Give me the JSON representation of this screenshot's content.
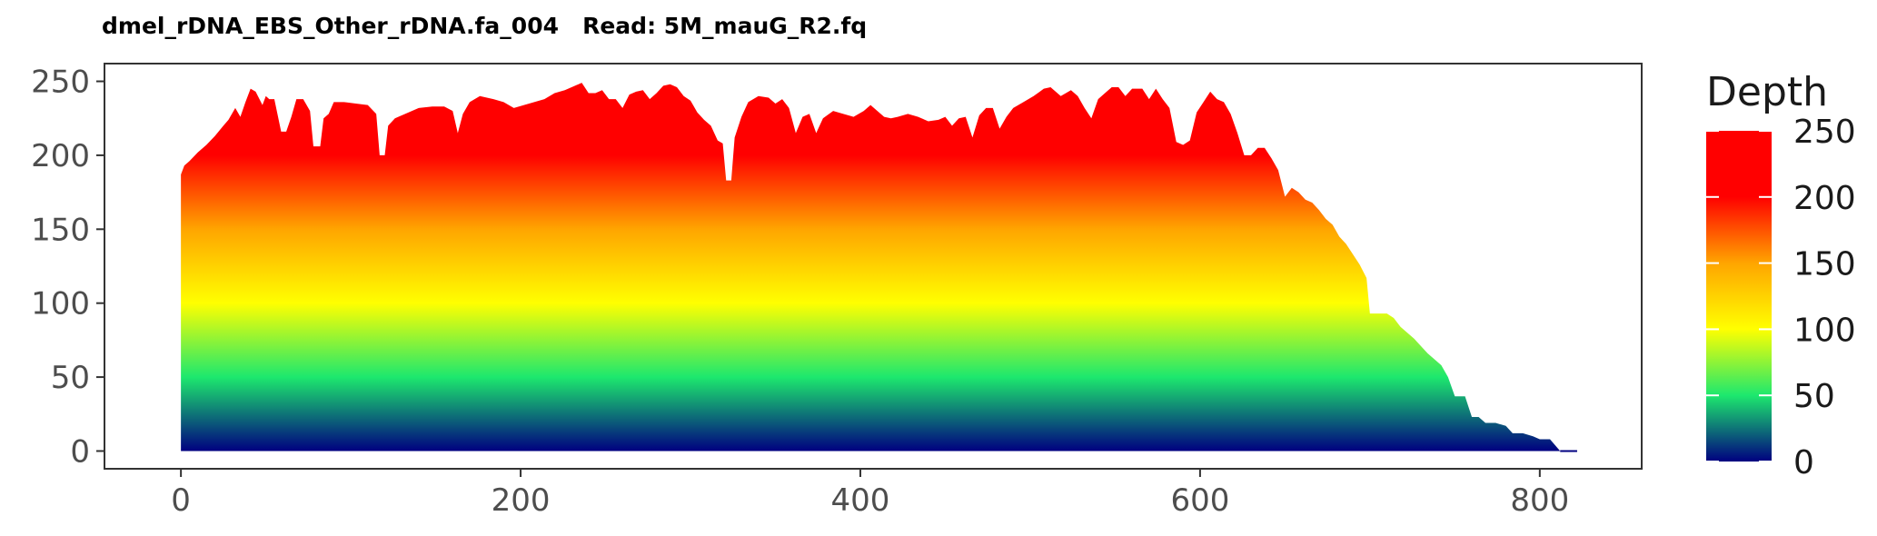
{
  "chart_data": {
    "type": "area",
    "title": "dmel_rDNA_EBS_Other_rDNA.fa_004   Read: 5M_mauG_R2.fq",
    "xlabel": "",
    "ylabel": "",
    "xlim": [
      -45,
      860
    ],
    "ylim": [
      -12,
      262
    ],
    "x_ticks": [
      0,
      200,
      400,
      600,
      800
    ],
    "y_ticks": [
      0,
      50,
      100,
      150,
      200,
      250
    ],
    "grid": false,
    "legend": {
      "title": "Depth",
      "position": "right",
      "ticks": [
        0,
        50,
        100,
        150,
        200,
        250
      ],
      "range": [
        0,
        250
      ]
    },
    "colors": {
      "gradient_stops": [
        {
          "value": 0,
          "color": "#000080"
        },
        {
          "value": 50,
          "color": "#1de86e"
        },
        {
          "value": 100,
          "color": "#ffff00"
        },
        {
          "value": 150,
          "color": "#ffa500"
        },
        {
          "value": 200,
          "color": "#ff0000"
        },
        {
          "value": 250,
          "color": "#ff0000"
        }
      ],
      "axis": "#333333",
      "tick_text": "#4d4d4d"
    },
    "series": [
      {
        "points": [
          [
            0,
            187
          ],
          [
            2,
            193
          ],
          [
            5,
            196
          ],
          [
            10,
            202
          ],
          [
            15,
            207
          ],
          [
            20,
            213
          ],
          [
            25,
            220
          ],
          [
            28,
            224
          ],
          [
            32,
            232
          ],
          [
            35,
            226
          ],
          [
            38,
            236
          ],
          [
            41,
            245
          ],
          [
            44,
            243
          ],
          [
            48,
            234
          ],
          [
            50,
            240
          ],
          [
            52,
            238
          ],
          [
            55,
            238
          ],
          [
            59,
            216
          ],
          [
            62,
            216
          ],
          [
            65,
            226
          ],
          [
            68,
            238
          ],
          [
            72,
            238
          ],
          [
            76,
            230
          ],
          [
            78,
            206
          ],
          [
            82,
            206
          ],
          [
            84,
            225
          ],
          [
            87,
            228
          ],
          [
            90,
            236
          ],
          [
            96,
            236
          ],
          [
            103,
            235
          ],
          [
            110,
            234
          ],
          [
            115,
            228
          ],
          [
            117,
            200
          ],
          [
            120,
            200
          ],
          [
            122,
            220
          ],
          [
            126,
            225
          ],
          [
            132,
            228
          ],
          [
            140,
            232
          ],
          [
            148,
            233
          ],
          [
            155,
            233
          ],
          [
            160,
            230
          ],
          [
            163,
            215
          ],
          [
            166,
            228
          ],
          [
            170,
            236
          ],
          [
            176,
            240
          ],
          [
            184,
            238
          ],
          [
            190,
            236
          ],
          [
            196,
            232
          ],
          [
            202,
            234
          ],
          [
            208,
            236
          ],
          [
            214,
            238
          ],
          [
            220,
            242
          ],
          [
            226,
            244
          ],
          [
            232,
            247
          ],
          [
            236,
            249
          ],
          [
            240,
            242
          ],
          [
            244,
            242
          ],
          [
            248,
            244
          ],
          [
            252,
            238
          ],
          [
            256,
            238
          ],
          [
            260,
            232
          ],
          [
            264,
            241
          ],
          [
            268,
            243
          ],
          [
            272,
            244
          ],
          [
            276,
            238
          ],
          [
            280,
            242
          ],
          [
            284,
            247
          ],
          [
            288,
            248
          ],
          [
            292,
            246
          ],
          [
            296,
            240
          ],
          [
            300,
            237
          ],
          [
            304,
            229
          ],
          [
            308,
            224
          ],
          [
            312,
            220
          ],
          [
            316,
            210
          ],
          [
            319,
            208
          ],
          [
            321,
            183
          ],
          [
            324,
            183
          ],
          [
            326,
            212
          ],
          [
            330,
            226
          ],
          [
            334,
            236
          ],
          [
            340,
            240
          ],
          [
            346,
            239
          ],
          [
            350,
            235
          ],
          [
            354,
            238
          ],
          [
            358,
            232
          ],
          [
            362,
            215
          ],
          [
            366,
            226
          ],
          [
            370,
            228
          ],
          [
            374,
            215
          ],
          [
            378,
            225
          ],
          [
            384,
            230
          ],
          [
            390,
            228
          ],
          [
            396,
            226
          ],
          [
            402,
            230
          ],
          [
            406,
            234
          ],
          [
            410,
            230
          ],
          [
            414,
            226
          ],
          [
            418,
            225
          ],
          [
            422,
            226
          ],
          [
            428,
            228
          ],
          [
            434,
            226
          ],
          [
            440,
            223
          ],
          [
            446,
            224
          ],
          [
            450,
            226
          ],
          [
            454,
            220
          ],
          [
            458,
            225
          ],
          [
            462,
            226
          ],
          [
            466,
            212
          ],
          [
            470,
            227
          ],
          [
            474,
            232
          ],
          [
            478,
            232
          ],
          [
            482,
            218
          ],
          [
            486,
            226
          ],
          [
            490,
            232
          ],
          [
            496,
            236
          ],
          [
            502,
            240
          ],
          [
            508,
            245
          ],
          [
            512,
            246
          ],
          [
            518,
            240
          ],
          [
            524,
            244
          ],
          [
            528,
            240
          ],
          [
            532,
            232
          ],
          [
            536,
            225
          ],
          [
            540,
            238
          ],
          [
            544,
            242
          ],
          [
            548,
            246
          ],
          [
            552,
            246
          ],
          [
            556,
            240
          ],
          [
            560,
            245
          ],
          [
            566,
            245
          ],
          [
            570,
            238
          ],
          [
            574,
            245
          ],
          [
            578,
            238
          ],
          [
            582,
            232
          ],
          [
            586,
            209
          ],
          [
            590,
            207
          ],
          [
            594,
            210
          ],
          [
            598,
            229
          ],
          [
            602,
            236
          ],
          [
            606,
            243
          ],
          [
            610,
            238
          ],
          [
            614,
            236
          ],
          [
            618,
            228
          ],
          [
            622,
            215
          ],
          [
            626,
            200
          ],
          [
            630,
            200
          ],
          [
            634,
            205
          ],
          [
            638,
            205
          ],
          [
            642,
            198
          ],
          [
            646,
            190
          ],
          [
            650,
            172
          ],
          [
            654,
            178
          ],
          [
            658,
            175
          ],
          [
            662,
            170
          ],
          [
            666,
            168
          ],
          [
            670,
            163
          ],
          [
            674,
            157
          ],
          [
            678,
            153
          ],
          [
            682,
            145
          ],
          [
            686,
            140
          ],
          [
            690,
            133
          ],
          [
            694,
            126
          ],
          [
            698,
            117
          ],
          [
            700,
            93
          ],
          [
            704,
            93
          ],
          [
            710,
            93
          ],
          [
            714,
            90
          ],
          [
            718,
            84
          ],
          [
            722,
            80
          ],
          [
            726,
            76
          ],
          [
            730,
            71
          ],
          [
            734,
            66
          ],
          [
            738,
            62
          ],
          [
            742,
            58
          ],
          [
            746,
            50
          ],
          [
            750,
            37
          ],
          [
            756,
            37
          ],
          [
            760,
            23
          ],
          [
            764,
            23
          ],
          [
            768,
            19
          ],
          [
            774,
            19
          ],
          [
            780,
            17
          ],
          [
            784,
            12
          ],
          [
            790,
            12
          ],
          [
            796,
            10
          ],
          [
            800,
            8
          ],
          [
            806,
            8
          ],
          [
            812,
            0
          ],
          [
            816,
            0
          ],
          [
            822,
            0
          ]
        ]
      }
    ]
  }
}
